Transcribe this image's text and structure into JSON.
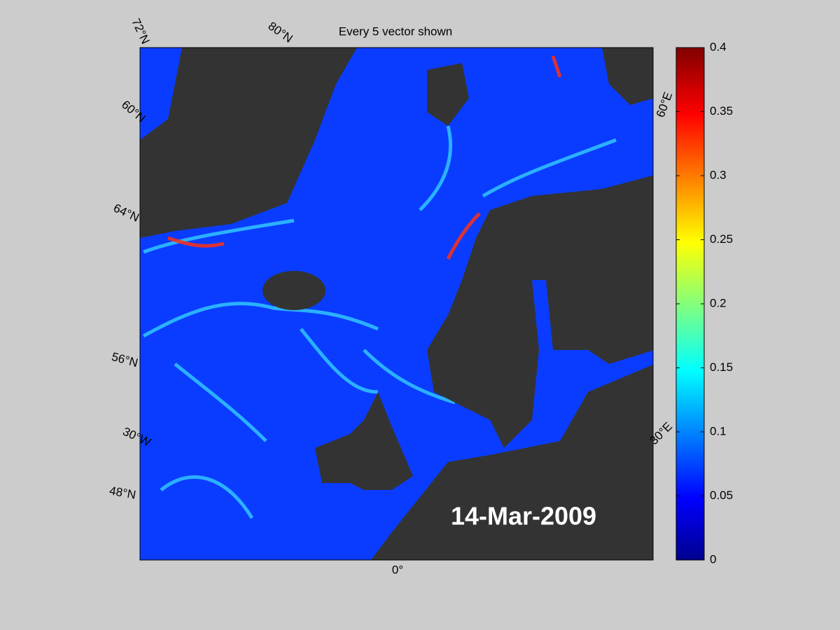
{
  "title": "Every 5 vector shown",
  "date": "14-Mar-2009",
  "map_labels": [
    "72°N",
    "80°N",
    "60°N",
    "64°N",
    "56°N",
    "30°W",
    "48°N",
    "0°",
    "30°E",
    "60°E"
  ],
  "colorbar": {
    "lim": [
      0,
      0.4
    ],
    "ticks": [
      0,
      0.05,
      0.1,
      0.15,
      0.2,
      0.25,
      0.3,
      0.35,
      0.4
    ]
  }
}
